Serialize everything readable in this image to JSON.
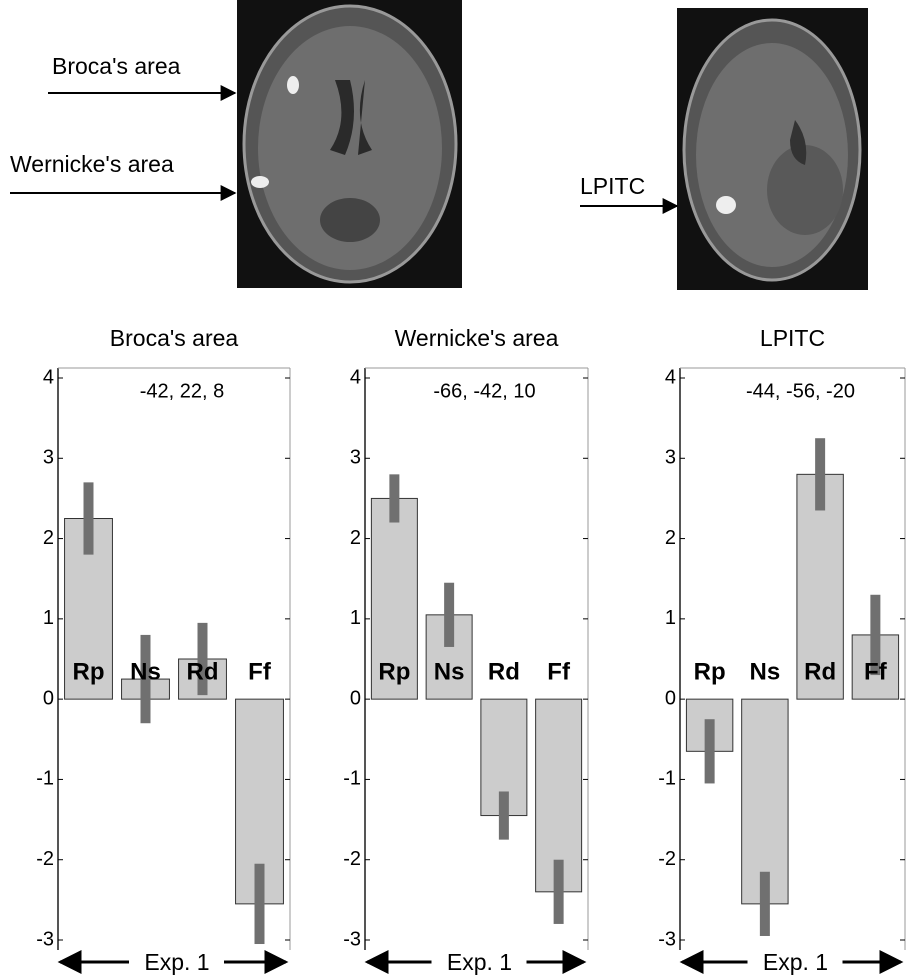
{
  "annotations": {
    "broca": "Broca's area",
    "wernicke": "Wernicke's area",
    "lpitc": "LPITC"
  },
  "chart_data": [
    {
      "type": "bar",
      "title": "Broca's  area",
      "subtitle": "-42,  22, 8",
      "xlabel": "Exp. 1",
      "categories": [
        "Rp",
        "Ns",
        "Rd",
        "Ff"
      ],
      "values": [
        2.25,
        0.25,
        0.5,
        -2.55
      ],
      "errors": [
        0.45,
        0.55,
        0.45,
        0.5
      ],
      "color": "#cccccc",
      "error_color": "#707070",
      "ylim": [
        -3,
        4
      ],
      "yticks": [
        -3,
        -2,
        -1,
        0,
        1,
        2,
        3,
        4
      ]
    },
    {
      "type": "bar",
      "title": "Wernicke's area",
      "subtitle": "-66, -42, 10",
      "xlabel": "Exp. 1",
      "categories": [
        "Rp",
        "Ns",
        "Rd",
        "Ff"
      ],
      "values": [
        2.5,
        1.05,
        -1.45,
        -2.4
      ],
      "errors": [
        0.3,
        0.4,
        0.3,
        0.4
      ],
      "color": "#cccccc",
      "error_color": "#707070",
      "ylim": [
        -3,
        4
      ],
      "yticks": [
        -3,
        -2,
        -1,
        0,
        1,
        2,
        3,
        4
      ]
    },
    {
      "type": "bar",
      "title": "LPITC",
      "subtitle": "-44, -56, -20",
      "xlabel": "Exp. 1",
      "categories": [
        "Rp",
        "Ns",
        "Rd",
        "Ff"
      ],
      "values": [
        -0.65,
        -2.55,
        2.8,
        0.8
      ],
      "errors": [
        0.4,
        0.4,
        0.45,
        0.5
      ],
      "color": "#cccccc",
      "error_color": "#707070",
      "ylim": [
        -3,
        4
      ],
      "yticks": [
        -3,
        -2,
        -1,
        0,
        1,
        2,
        3,
        4
      ]
    }
  ]
}
